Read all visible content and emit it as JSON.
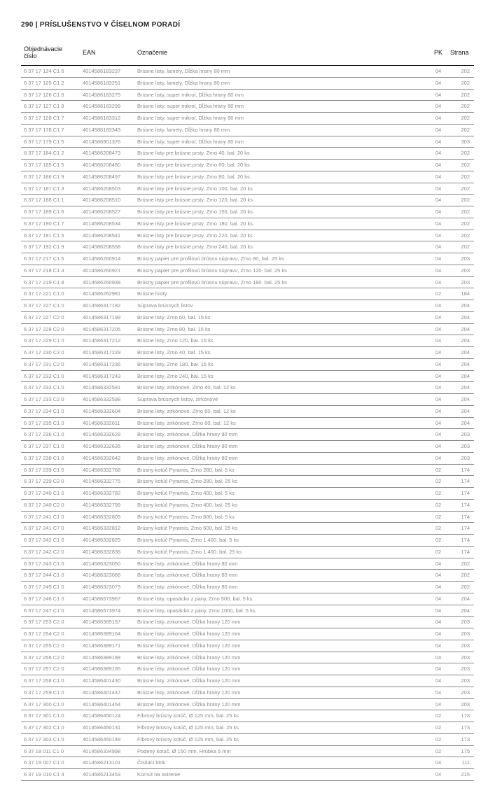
{
  "header": {
    "page_number": "290",
    "title": "PRÍSLUŠENSTVO V ČÍSELNOM PORADÍ"
  },
  "columns": {
    "obj": "Objednávacie číslo",
    "ean": "EAN",
    "ozn": "Označenie",
    "pk": "PK",
    "str": "Strana"
  },
  "rows": [
    {
      "obj": "6 37 17 124 C1 6",
      "ean": "4014586183237",
      "ozn": "Brúsne listy, lamely, Dĺžka hrany 80 mm",
      "pk": "04",
      "str": "202"
    },
    {
      "obj": "6 37 17 125 C1 2",
      "ean": "4014586183251",
      "ozn": "Brúsne listy, lamely, Dĺžka hrany 80 mm",
      "pk": "04",
      "str": "202"
    },
    {
      "obj": "6 37 17 126 C1 6",
      "ean": "4014586183275",
      "ozn": "Brúsne listy, super mikrol, Dĺžka hrany 80 mm",
      "pk": "04",
      "str": "202"
    },
    {
      "obj": "6 37 17 127 C1 9",
      "ean": "4014586183299",
      "ozn": "Brúsne listy, super mikrol, Dĺžka hrany 80 mm",
      "pk": "04",
      "str": "202"
    },
    {
      "obj": "6 37 17 128 C1 7",
      "ean": "4014586183312",
      "ozn": "Brúsne listy, super mikrol, Dĺžka hrany 80 mm",
      "pk": "04",
      "str": "202"
    },
    {
      "obj": "6 37 17 178 C1 7",
      "ean": "4014586183343",
      "ozn": "Brúsne listy, lamely, Dĺžka hrany 80 mm",
      "pk": "04",
      "str": "202"
    },
    {
      "obj": "6 37 17 179 C1 5",
      "ean": "4014586901376",
      "ozn": "Brúsne listy, super mikrol, Dĺžka hrany 80 mm",
      "pk": "04",
      "str": "303"
    },
    {
      "obj": "6 37 17 184 C1 2",
      "ean": "4014586208473",
      "ozn": "Brúsne listy pre brúsne prsty, Zrno 40, bal. 20 ks",
      "pk": "04",
      "str": "202"
    },
    {
      "obj": "6 37 17 185 C1 5",
      "ean": "4014586208480",
      "ozn": "Brúsne listy pre brúsne prsty, Zrno 60, bal. 20 ks",
      "pk": "04",
      "str": "202"
    },
    {
      "obj": "6 37 17 186 C1 9",
      "ean": "4014586208497",
      "ozn": "Brúsne listy pre brúsne prsty, Zrno 80, bal. 20 ks",
      "pk": "04",
      "str": "202"
    },
    {
      "obj": "6 37 17 187 C1 3",
      "ean": "4014586208503",
      "ozn": "Brúsne listy pre brúsne prsty, Zrno 100, bal. 20 ks",
      "pk": "04",
      "str": "202"
    },
    {
      "obj": "6 37 17 188 C1 1",
      "ean": "4014586208510",
      "ozn": "Brúsne listy pre brúsne prsty, Zrno 120, bal. 20 ks",
      "pk": "04",
      "str": "202"
    },
    {
      "obj": "6 37 17 189 C1 6",
      "ean": "4014586208527",
      "ozn": "Brúsne listy pre brúsne prsty, Zrno 150, bal. 20 ks",
      "pk": "04",
      "str": "202"
    },
    {
      "obj": "6 37 17 190 C1 7",
      "ean": "4014586208534",
      "ozn": "Brúsne listy pre brúsne prsty, Zrno 180, bal. 20 ks",
      "pk": "04",
      "str": "202"
    },
    {
      "obj": "6 37 17 191 C1 5",
      "ean": "4014586208541",
      "ozn": "Brúsne listy pre brúsne prsty, Zrno 220, bal. 20 ks",
      "pk": "04",
      "str": "202"
    },
    {
      "obj": "6 37 17 192 C1 9",
      "ean": "4014586208558",
      "ozn": "Brúsne listy pre brúsne prsty, Zrno 240, bal. 20 ks",
      "pk": "04",
      "str": "202"
    },
    {
      "obj": "6 37 17 217 C1 5",
      "ean": "4014586260914",
      "ozn": "Brúsny papier pre profilovú brúsnu súpravu, Zrno 80, bal. 25 ks",
      "pk": "04",
      "str": "203"
    },
    {
      "obj": "6 37 17 218 C1 4",
      "ean": "4014586260921",
      "ozn": "Brúsny papier pre profilovú brúsnu súpravu, Zrno 120, bal. 25 ks",
      "pk": "04",
      "str": "203"
    },
    {
      "obj": "6 37 17 219 C1 8",
      "ean": "4014586260938",
      "ozn": "Brúsny papier pre profilovú brúsnu súpravu, Zrno 180, bal. 25 ks",
      "pk": "04",
      "str": "203"
    },
    {
      "obj": "6 37 17 221 C1 0",
      "ean": "4014586262981",
      "ozn": "Brúsne hroty",
      "pk": "02",
      "str": "184"
    },
    {
      "obj": "6 37 17 227 C1 0",
      "ean": "4014586317182",
      "ozn": "Súprava brúsnych listov",
      "pk": "04",
      "str": "204"
    },
    {
      "obj": "6 37 17 227 C2 0",
      "ean": "4014586317199",
      "ozn": "Brúsne listy, Zrno 60, bal. 15 ks",
      "pk": "04",
      "str": "204"
    },
    {
      "obj": "6 37 17 228 C2 0",
      "ean": "4014586317205",
      "ozn": "Brúsne listy, Zrno 80, bal. 15 ks",
      "pk": "04",
      "str": "204"
    },
    {
      "obj": "6 37 17 229 C1 0",
      "ean": "4014586317212",
      "ozn": "Brúsne listy, Zrno 120, bal. 15 ks",
      "pk": "04",
      "str": "204"
    },
    {
      "obj": "6 37 17 230 C3 0",
      "ean": "4014586317229",
      "ozn": "Brúsne listy, Zrno 40, bal. 15 ks",
      "pk": "04",
      "str": "204"
    },
    {
      "obj": "6 37 17 231 C2 0",
      "ean": "4014586317236",
      "ozn": "Brúsne listy, Zrno 180, bal. 15 ks",
      "pk": "04",
      "str": "204"
    },
    {
      "obj": "6 37 17 232 C1 0",
      "ean": "4014586317243",
      "ozn": "Brúsne listy, Zrno 240, bal. 15 ks",
      "pk": "04",
      "str": "204"
    },
    {
      "obj": "6 37 17 233 C1 0",
      "ean": "4014586332581",
      "ozn": "Brúsne listy, zirkónové, Zrno 40, bal. 12 ks",
      "pk": "04",
      "str": "204"
    },
    {
      "obj": "6 37 17 233 C2 0",
      "ean": "4014586332598",
      "ozn": "Súprava brúsnych listov, zirkónové",
      "pk": "04",
      "str": "204"
    },
    {
      "obj": "6 37 17 234 C1 0",
      "ean": "4014586332604",
      "ozn": "Brúsne listy, zirkónové, Zrno 60, bal. 12 ks",
      "pk": "04",
      "str": "204"
    },
    {
      "obj": "6 37 17 235 C1 0",
      "ean": "4014586332611",
      "ozn": "Brúsne listy, zirkónové, Zrno 80, bal. 12 ks",
      "pk": "04",
      "str": "204"
    },
    {
      "obj": "6 37 17 236 C1 0",
      "ean": "4014586332628",
      "ozn": "Brúsne listy, zirkónové, Dĺžka hrany 80 mm",
      "pk": "04",
      "str": "203"
    },
    {
      "obj": "6 37 17 237 C1 0",
      "ean": "4014586332635",
      "ozn": "Brúsne listy, zirkónové, Dĺžka hrany 80 mm",
      "pk": "04",
      "str": "203"
    },
    {
      "obj": "6 37 17 238 C1 0",
      "ean": "4014586332642",
      "ozn": "Brúsne listy, zirkónové, Dĺžka hrany 80 mm",
      "pk": "04",
      "str": "203"
    },
    {
      "obj": "6 37 17 239 C1 0",
      "ean": "4014586332768",
      "ozn": "Brúsny kotúč Pyramis, Zrno 280, bal. 5 ks",
      "pk": "02",
      "str": "174"
    },
    {
      "obj": "6 37 17 239 C2 0",
      "ean": "4014586332775",
      "ozn": "Brúsny kotúč Pyramis, Zrno 280, bal. 25 ks",
      "pk": "02",
      "str": "174"
    },
    {
      "obj": "6 37 17 240 C1 0",
      "ean": "4014586332782",
      "ozn": "Brúsny kotúč Pyramis, Zrno 400, bal. 5 ks",
      "pk": "02",
      "str": "174"
    },
    {
      "obj": "6 37 17 240 C2 0",
      "ean": "4014586332799",
      "ozn": "Brúsny kotúč Pyramis, Zrno 400, bal. 25 ks",
      "pk": "02",
      "str": "174"
    },
    {
      "obj": "6 37 17 241 C1 0",
      "ean": "4014586332805",
      "ozn": "Brúsny kotúč Pyramis, Zrno 600, bal. 5 ks",
      "pk": "02",
      "str": "174"
    },
    {
      "obj": "6 37 17 241 C7 0",
      "ean": "4014586332812",
      "ozn": "Brúsny kotúč Pyramis, Zrno 600, bal. 25 ks",
      "pk": "02",
      "str": "174"
    },
    {
      "obj": "6 37 17 242 C1 0",
      "ean": "4014586332829",
      "ozn": "Brúsny kotúč Pyramis, Zrno 1 400, bal. 5 ks",
      "pk": "02",
      "str": "174"
    },
    {
      "obj": "6 37 17 242 C2 0",
      "ean": "4014586332836",
      "ozn": "Brúsny kotúč Pyramis, Zrno 1 400, bal. 25 ks",
      "pk": "02",
      "str": "174"
    },
    {
      "obj": "6 37 17 243 C1 0",
      "ean": "4014586323050",
      "ozn": "Brúsne listy, zirkónové, Dĺžka hrany 80 mm",
      "pk": "04",
      "str": "202"
    },
    {
      "obj": "6 37 17 244 C1 0",
      "ean": "4014586323066",
      "ozn": "Brúsne listy, zirkónové, Dĺžka hrany 80 mm",
      "pk": "04",
      "str": "202"
    },
    {
      "obj": "6 37 17 245 C1 0",
      "ean": "4014586323073",
      "ozn": "Brúsne listy, zirkónové, Dĺžka hrany 80 mm",
      "pk": "04",
      "str": "202"
    },
    {
      "obj": "6 37 17 246 C1 0",
      "ean": "4014586573967",
      "ozn": "Brúsne listy, opasácko z pany, Zrno 500, bal. 5 ks",
      "pk": "04",
      "str": "204"
    },
    {
      "obj": "6 37 17 247 C1 0",
      "ean": "4014586573974",
      "ozn": "Brúsne listy, opasácko z pany, Zrno 1000, bal. 5 ks",
      "pk": "04",
      "str": "204"
    },
    {
      "obj": "6 37 17 253 C2 0",
      "ean": "4014586389157",
      "ozn": "Brúsne listy, zirkonové, Dĺžka hrany 120 mm",
      "pk": "04",
      "str": "203"
    },
    {
      "obj": "6 37 17 254 C2 0",
      "ean": "4014586389164",
      "ozn": "Brúsne listy, zirkonové, Dĺžka hrany 120 mm",
      "pk": "04",
      "str": "203"
    },
    {
      "obj": "6 37 17 255 C2 0",
      "ean": "4014586389171",
      "ozn": "Brúsne listy, zirkonové, Dĺžka hrany 120 mm",
      "pk": "04",
      "str": "203"
    },
    {
      "obj": "6 37 17 256 C2 0",
      "ean": "4014586389188",
      "ozn": "Brúsne listy, zirkónové, Dĺžka hrany 120 mm",
      "pk": "04",
      "str": "203"
    },
    {
      "obj": "6 37 17 257 C2 0",
      "ean": "4014586389195",
      "ozn": "Brúsne listy, zirkonové, Dĺžka hrany 120 mm",
      "pk": "04",
      "str": "203"
    },
    {
      "obj": "6 37 17 258 C1 0",
      "ean": "4014586401430",
      "ozn": "Brúsne listy, zirkónové, Dĺžka hrany 120 mm",
      "pk": "04",
      "str": "203"
    },
    {
      "obj": "6 37 17 259 C1 0",
      "ean": "4014586401447",
      "ozn": "Brúsne listy, zirkónové, Dĺžka hrany 120 mm",
      "pk": "04",
      "str": "203"
    },
    {
      "obj": "6 37 17 300 C1 0",
      "ean": "4014586401454",
      "ozn": "Brúsne listy, zirkónové, Dĺžka hrany 120 mm",
      "pk": "04",
      "str": "203"
    },
    {
      "obj": "6 37 17 301 C1 0",
      "ean": "4014586450124",
      "ozn": "Fíbrový brúsny kotúč, Ø 125 mm, bal. 25 ks",
      "pk": "02",
      "str": "173"
    },
    {
      "obj": "6 37 17 302 C1 0",
      "ean": "4014586450131",
      "ozn": "Fíbrový brúsny kotúč, Ø 125 mm, bal. 25 ks",
      "pk": "02",
      "str": "173"
    },
    {
      "obj": "6 37 17 303 C1 0",
      "ean": "4014586450148",
      "ozn": "Fíbrový brúsny kotúč, Ø 125 mm, bal. 25 ks",
      "pk": "02",
      "str": "173"
    },
    {
      "obj": "6 37 18 011 C1 0",
      "ean": "4014586334998",
      "ozn": "Podený kotúč, Ø 150 mm, Hrúbka 5 mm",
      "pk": "02",
      "str": "175"
    },
    {
      "obj": "6 37 19 007 C1 0",
      "ean": "4014586213101",
      "ozn": "Čistiaci blok",
      "pk": "04",
      "str": "111"
    },
    {
      "obj": "6 37 19 010 C1 4",
      "ean": "4014586213453",
      "ozn": "Kornút na ostrenie",
      "pk": "04",
      "str": "215"
    }
  ],
  "style": {
    "body_bg": "#ffffff",
    "row_text_color": "#8a8a8a",
    "header_text_color": "#111111",
    "border_color": "#888888",
    "font_size_header": 10,
    "font_size_th": 9,
    "font_size_td": 7.5
  }
}
